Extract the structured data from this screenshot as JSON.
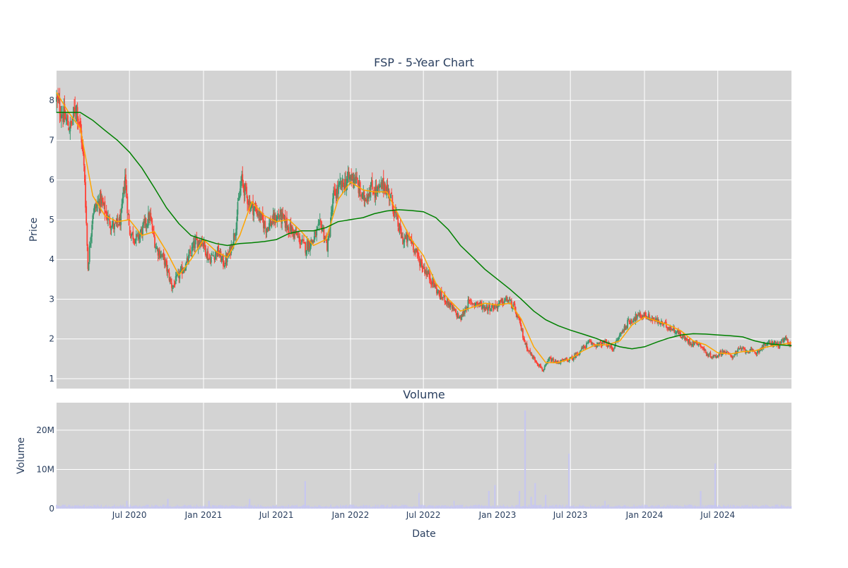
{
  "chart_data": [
    {
      "type": "candlestick",
      "title": "FSP - 5-Year Chart",
      "ylabel": "Price",
      "ylim": [
        0.75,
        8.75
      ],
      "y_ticks": [
        1,
        2,
        3,
        4,
        5,
        6,
        7,
        8
      ],
      "grid": true,
      "background": "#d3d3d3",
      "gridline_color": "#ffffff",
      "increasing_color": "#3d9970",
      "decreasing_color": "#ff4136",
      "moving_averages": [
        {
          "color": "#ffa500",
          "window": "short"
        },
        {
          "color": "#008000",
          "window": "long"
        }
      ],
      "close_series": [
        [
          "2020-01-02",
          8.0
        ],
        [
          "2020-01-20",
          7.6
        ],
        [
          "2020-02-05",
          7.3
        ],
        [
          "2020-02-20",
          7.9
        ],
        [
          "2020-03-05",
          7.0
        ],
        [
          "2020-03-12",
          6.0
        ],
        [
          "2020-03-20",
          3.8
        ],
        [
          "2020-04-01",
          5.2
        ],
        [
          "2020-04-20",
          5.5
        ],
        [
          "2020-05-10",
          5.0
        ],
        [
          "2020-05-25",
          4.8
        ],
        [
          "2020-06-10",
          5.0
        ],
        [
          "2020-06-20",
          6.1
        ],
        [
          "2020-07-01",
          4.7
        ],
        [
          "2020-07-20",
          4.5
        ],
        [
          "2020-08-05",
          4.8
        ],
        [
          "2020-08-20",
          5.1
        ],
        [
          "2020-09-05",
          4.3
        ],
        [
          "2020-09-25",
          4.0
        ],
        [
          "2020-10-15",
          3.3
        ],
        [
          "2020-11-01",
          3.6
        ],
        [
          "2020-11-20",
          3.9
        ],
        [
          "2020-12-10",
          4.4
        ],
        [
          "2020-12-28",
          4.5
        ],
        [
          "2021-01-15",
          4.0
        ],
        [
          "2021-02-05",
          4.2
        ],
        [
          "2021-02-20",
          3.9
        ],
        [
          "2021-03-05",
          4.1
        ],
        [
          "2021-03-20",
          4.7
        ],
        [
          "2021-04-05",
          6.0
        ],
        [
          "2021-04-25",
          5.4
        ],
        [
          "2021-05-15",
          5.2
        ],
        [
          "2021-06-05",
          4.8
        ],
        [
          "2021-06-25",
          5.0
        ],
        [
          "2021-07-10",
          5.1
        ],
        [
          "2021-08-01",
          4.8
        ],
        [
          "2021-08-20",
          4.6
        ],
        [
          "2021-09-10",
          4.3
        ],
        [
          "2021-10-01",
          4.5
        ],
        [
          "2021-10-20",
          4.9
        ],
        [
          "2021-11-05",
          4.3
        ],
        [
          "2021-11-20",
          5.6
        ],
        [
          "2021-12-05",
          5.8
        ],
        [
          "2021-12-25",
          6.0
        ],
        [
          "2022-01-10",
          6.1
        ],
        [
          "2022-02-01",
          5.5
        ],
        [
          "2022-02-20",
          5.8
        ],
        [
          "2022-03-10",
          5.7
        ],
        [
          "2022-03-25",
          5.9
        ],
        [
          "2022-04-10",
          5.6
        ],
        [
          "2022-04-25",
          5.0
        ],
        [
          "2022-05-10",
          4.5
        ],
        [
          "2022-06-01",
          4.5
        ],
        [
          "2022-06-15",
          4.1
        ],
        [
          "2022-07-01",
          3.8
        ],
        [
          "2022-07-20",
          3.5
        ],
        [
          "2022-08-10",
          3.1
        ],
        [
          "2022-08-25",
          3.0
        ],
        [
          "2022-09-15",
          2.7
        ],
        [
          "2022-10-01",
          2.5
        ],
        [
          "2022-10-20",
          2.9
        ],
        [
          "2022-11-10",
          2.9
        ],
        [
          "2022-12-01",
          2.8
        ],
        [
          "2022-12-20",
          2.8
        ],
        [
          "2023-01-10",
          2.9
        ],
        [
          "2023-01-25",
          3.0
        ],
        [
          "2023-02-10",
          2.8
        ],
        [
          "2023-02-25",
          2.4
        ],
        [
          "2023-03-10",
          1.9
        ],
        [
          "2023-03-25",
          1.6
        ],
        [
          "2023-04-10",
          1.4
        ],
        [
          "2023-04-25",
          1.2
        ],
        [
          "2023-05-10",
          1.5
        ],
        [
          "2023-05-25",
          1.4
        ],
        [
          "2023-06-15",
          1.45
        ],
        [
          "2023-07-05",
          1.5
        ],
        [
          "2023-07-25",
          1.7
        ],
        [
          "2023-08-15",
          1.9
        ],
        [
          "2023-09-05",
          1.85
        ],
        [
          "2023-09-25",
          1.9
        ],
        [
          "2023-10-15",
          1.75
        ],
        [
          "2023-11-01",
          2.1
        ],
        [
          "2023-11-20",
          2.4
        ],
        [
          "2023-12-10",
          2.55
        ],
        [
          "2024-01-01",
          2.6
        ],
        [
          "2024-01-20",
          2.5
        ],
        [
          "2024-02-10",
          2.4
        ],
        [
          "2024-03-01",
          2.3
        ],
        [
          "2024-03-20",
          2.2
        ],
        [
          "2024-04-10",
          2.0
        ],
        [
          "2024-04-25",
          1.9
        ],
        [
          "2024-05-15",
          1.9
        ],
        [
          "2024-06-05",
          1.6
        ],
        [
          "2024-06-25",
          1.55
        ],
        [
          "2024-07-15",
          1.7
        ],
        [
          "2024-08-05",
          1.55
        ],
        [
          "2024-08-25",
          1.75
        ],
        [
          "2024-09-15",
          1.7
        ],
        [
          "2024-10-05",
          1.65
        ],
        [
          "2024-10-25",
          1.85
        ],
        [
          "2024-11-15",
          1.9
        ],
        [
          "2024-12-01",
          1.85
        ],
        [
          "2024-12-15",
          2.0
        ],
        [
          "2024-12-31",
          1.85
        ]
      ],
      "short_ma": [
        [
          "2020-01-02",
          8.2
        ],
        [
          "2020-02-01",
          7.7
        ],
        [
          "2020-03-01",
          7.3
        ],
        [
          "2020-04-01",
          5.6
        ],
        [
          "2020-05-01",
          5.1
        ],
        [
          "2020-06-01",
          4.95
        ],
        [
          "2020-07-01",
          5.0
        ],
        [
          "2020-08-01",
          4.6
        ],
        [
          "2020-09-01",
          4.7
        ],
        [
          "2020-10-01",
          4.2
        ],
        [
          "2020-11-01",
          3.6
        ],
        [
          "2020-12-01",
          4.0
        ],
        [
          "2021-01-01",
          4.5
        ],
        [
          "2021-02-01",
          4.2
        ],
        [
          "2021-03-01",
          4.05
        ],
        [
          "2021-04-01",
          4.6
        ],
        [
          "2021-05-01",
          5.45
        ],
        [
          "2021-06-01",
          5.1
        ],
        [
          "2021-07-01",
          4.95
        ],
        [
          "2021-08-01",
          5.0
        ],
        [
          "2021-09-01",
          4.7
        ],
        [
          "2021-10-01",
          4.35
        ],
        [
          "2021-11-01",
          4.5
        ],
        [
          "2021-12-01",
          5.5
        ],
        [
          "2022-01-01",
          5.95
        ],
        [
          "2022-02-01",
          5.75
        ],
        [
          "2022-03-01",
          5.7
        ],
        [
          "2022-04-01",
          5.7
        ],
        [
          "2022-05-01",
          5.1
        ],
        [
          "2022-06-01",
          4.5
        ],
        [
          "2022-07-01",
          4.1
        ],
        [
          "2022-08-01",
          3.4
        ],
        [
          "2022-09-01",
          3.0
        ],
        [
          "2022-10-01",
          2.7
        ],
        [
          "2022-11-01",
          2.8
        ],
        [
          "2022-12-01",
          2.9
        ],
        [
          "2023-01-01",
          2.85
        ],
        [
          "2023-02-01",
          2.9
        ],
        [
          "2023-03-01",
          2.5
        ],
        [
          "2023-04-01",
          1.8
        ],
        [
          "2023-05-01",
          1.4
        ],
        [
          "2023-06-01",
          1.4
        ],
        [
          "2023-07-01",
          1.5
        ],
        [
          "2023-08-01",
          1.7
        ],
        [
          "2023-09-01",
          1.85
        ],
        [
          "2023-10-01",
          1.85
        ],
        [
          "2023-11-01",
          1.95
        ],
        [
          "2023-12-01",
          2.35
        ],
        [
          "2024-01-01",
          2.55
        ],
        [
          "2024-02-01",
          2.45
        ],
        [
          "2024-03-01",
          2.35
        ],
        [
          "2024-04-01",
          2.2
        ],
        [
          "2024-05-01",
          1.95
        ],
        [
          "2024-06-01",
          1.85
        ],
        [
          "2024-07-01",
          1.65
        ],
        [
          "2024-08-01",
          1.62
        ],
        [
          "2024-09-01",
          1.68
        ],
        [
          "2024-10-01",
          1.7
        ],
        [
          "2024-11-01",
          1.8
        ],
        [
          "2024-12-01",
          1.85
        ],
        [
          "2024-12-31",
          1.9
        ]
      ],
      "long_ma": [
        [
          "2020-01-02",
          7.7
        ],
        [
          "2020-02-01",
          7.7
        ],
        [
          "2020-03-01",
          7.7
        ],
        [
          "2020-04-01",
          7.5
        ],
        [
          "2020-05-01",
          7.25
        ],
        [
          "2020-06-01",
          7.0
        ],
        [
          "2020-07-01",
          6.7
        ],
        [
          "2020-08-01",
          6.3
        ],
        [
          "2020-09-01",
          5.8
        ],
        [
          "2020-10-01",
          5.3
        ],
        [
          "2020-11-01",
          4.9
        ],
        [
          "2020-12-01",
          4.6
        ],
        [
          "2021-01-01",
          4.5
        ],
        [
          "2021-02-01",
          4.4
        ],
        [
          "2021-03-01",
          4.35
        ],
        [
          "2021-04-01",
          4.4
        ],
        [
          "2021-05-01",
          4.42
        ],
        [
          "2021-06-01",
          4.45
        ],
        [
          "2021-07-01",
          4.5
        ],
        [
          "2021-08-01",
          4.65
        ],
        [
          "2021-09-01",
          4.72
        ],
        [
          "2021-10-01",
          4.72
        ],
        [
          "2021-11-01",
          4.8
        ],
        [
          "2021-12-01",
          4.95
        ],
        [
          "2022-01-01",
          5.0
        ],
        [
          "2022-02-01",
          5.05
        ],
        [
          "2022-03-01",
          5.15
        ],
        [
          "2022-04-01",
          5.22
        ],
        [
          "2022-05-01",
          5.25
        ],
        [
          "2022-06-01",
          5.23
        ],
        [
          "2022-07-01",
          5.2
        ],
        [
          "2022-08-01",
          5.05
        ],
        [
          "2022-09-01",
          4.75
        ],
        [
          "2022-10-01",
          4.35
        ],
        [
          "2022-11-01",
          4.05
        ],
        [
          "2022-12-01",
          3.75
        ],
        [
          "2023-01-01",
          3.5
        ],
        [
          "2023-02-01",
          3.25
        ],
        [
          "2023-03-01",
          3.0
        ],
        [
          "2023-04-01",
          2.7
        ],
        [
          "2023-05-01",
          2.48
        ],
        [
          "2023-06-01",
          2.33
        ],
        [
          "2023-07-01",
          2.22
        ],
        [
          "2023-08-01",
          2.12
        ],
        [
          "2023-09-01",
          2.02
        ],
        [
          "2023-10-01",
          1.9
        ],
        [
          "2023-11-01",
          1.8
        ],
        [
          "2023-12-01",
          1.75
        ],
        [
          "2024-01-01",
          1.8
        ],
        [
          "2024-02-01",
          1.92
        ],
        [
          "2024-03-01",
          2.02
        ],
        [
          "2024-04-01",
          2.1
        ],
        [
          "2024-05-01",
          2.13
        ],
        [
          "2024-06-01",
          2.12
        ],
        [
          "2024-07-01",
          2.1
        ],
        [
          "2024-08-01",
          2.08
        ],
        [
          "2024-09-01",
          2.05
        ],
        [
          "2024-10-01",
          1.95
        ],
        [
          "2024-11-01",
          1.88
        ],
        [
          "2024-12-01",
          1.85
        ],
        [
          "2024-12-31",
          1.83
        ]
      ]
    },
    {
      "type": "bar",
      "title": "Volume",
      "xlabel": "Date",
      "ylabel": "Volume",
      "ylim": [
        0,
        27000000
      ],
      "y_ticks": [
        {
          "value": 0,
          "label": "0"
        },
        {
          "value": 10000000,
          "label": "10M"
        },
        {
          "value": 20000000,
          "label": "20M"
        }
      ],
      "x_range": [
        "2020-01-02",
        "2024-12-31"
      ],
      "x_ticks": [
        {
          "date": "2020-07-01",
          "label": "Jul 2020"
        },
        {
          "date": "2021-01-01",
          "label": "Jan 2021"
        },
        {
          "date": "2021-07-01",
          "label": "Jul 2021"
        },
        {
          "date": "2022-01-01",
          "label": "Jan 2022"
        },
        {
          "date": "2022-07-01",
          "label": "Jul 2022"
        },
        {
          "date": "2023-01-01",
          "label": "Jan 2023"
        },
        {
          "date": "2023-07-01",
          "label": "Jul 2023"
        },
        {
          "date": "2024-01-01",
          "label": "Jan 2024"
        },
        {
          "date": "2024-07-01",
          "label": "Jul 2024"
        }
      ],
      "bar_color": "#c7c7f0",
      "baseline_volume": 700000,
      "spikes": [
        [
          "2020-06-25",
          2000000
        ],
        [
          "2020-10-05",
          2500000
        ],
        [
          "2021-01-15",
          2000000
        ],
        [
          "2021-04-25",
          2500000
        ],
        [
          "2021-09-10",
          7000000
        ],
        [
          "2022-06-20",
          4000000
        ],
        [
          "2022-09-15",
          2000000
        ],
        [
          "2022-12-10",
          4500000
        ],
        [
          "2022-12-25",
          6000000
        ],
        [
          "2023-02-25",
          4500000
        ],
        [
          "2023-03-10",
          25000000
        ],
        [
          "2023-03-25",
          3000000
        ],
        [
          "2023-04-05",
          6500000
        ],
        [
          "2023-04-30",
          3500000
        ],
        [
          "2023-06-28",
          14000000
        ],
        [
          "2023-09-25",
          2000000
        ],
        [
          "2024-05-20",
          4500000
        ],
        [
          "2024-06-25",
          11500000
        ]
      ]
    }
  ]
}
